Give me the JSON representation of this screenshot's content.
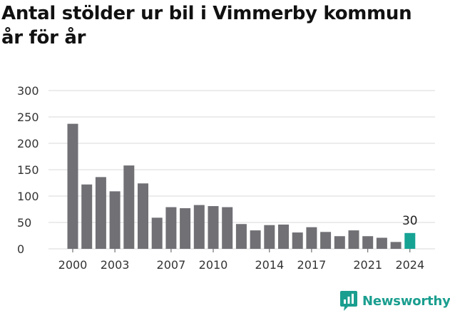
{
  "title_lines": [
    "Antal stölder ur bil i Vimmerby kommun",
    "år för år"
  ],
  "brand": {
    "name": "Newsworthy",
    "icon": "newsworthy-logo-icon",
    "color": "#1a9e8f"
  },
  "colors": {
    "bar": "#717075",
    "highlight": "#16a394",
    "grid": "#d9d9d9",
    "text": "#333333"
  },
  "chart_data": {
    "type": "bar",
    "title": "Antal stölder ur bil i Vimmerby kommun år för år",
    "xlabel": "",
    "ylabel": "",
    "ylim": [
      0,
      300
    ],
    "yticks": [
      0,
      50,
      100,
      150,
      200,
      250,
      300
    ],
    "xtick_labels": [
      "2000",
      "2003",
      "2007",
      "2010",
      "2014",
      "2017",
      "2021",
      "2024"
    ],
    "categories": [
      "2000",
      "2001",
      "2002",
      "2003",
      "2004",
      "2005",
      "2006",
      "2007",
      "2008",
      "2009",
      "2010",
      "2011",
      "2012",
      "2013",
      "2014",
      "2015",
      "2016",
      "2017",
      "2018",
      "2019",
      "2020",
      "2021",
      "2022",
      "2023",
      "2024"
    ],
    "values": [
      237,
      122,
      136,
      109,
      158,
      124,
      59,
      79,
      77,
      83,
      81,
      79,
      47,
      35,
      45,
      46,
      31,
      41,
      32,
      24,
      35,
      24,
      21,
      13,
      30
    ],
    "highlight_index": 24,
    "data_labels": [
      {
        "index": 24,
        "text": "30"
      }
    ],
    "grid": true,
    "legend": "none"
  }
}
